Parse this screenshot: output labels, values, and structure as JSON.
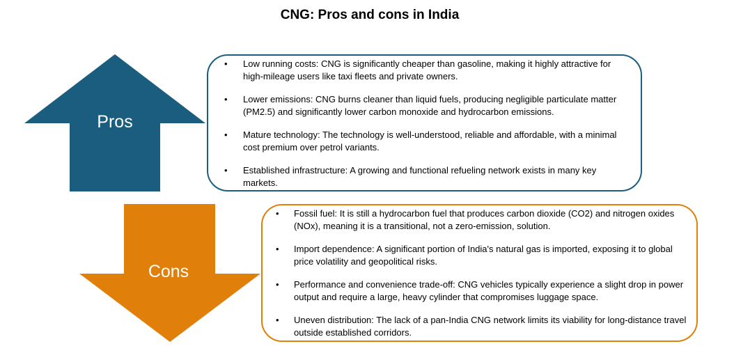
{
  "title": "CNG: Pros and cons in India",
  "colors": {
    "pros": "#1a5d7e",
    "cons": "#e0800a"
  },
  "pros": {
    "label": "Pros",
    "items": [
      "Low running costs: CNG is significantly cheaper than gasoline, making it highly attractive for high-mileage users like taxi fleets and private owners.",
      "Lower emissions: CNG burns cleaner than liquid fuels, producing negligible particulate matter (PM2.5) and significantly lower carbon monoxide and hydrocarbon emissions.",
      "Mature technology: The technology is well-understood, reliable and affordable, with a minimal cost premium over petrol variants.",
      "Established infrastructure: A growing and functional refueling network exists in many key markets."
    ]
  },
  "cons": {
    "label": "Cons",
    "items": [
      "Fossil fuel: It is still a hydrocarbon fuel that produces carbon dioxide (CO2) and nitrogen oxides (NOx), meaning it is a transitional, not a zero-emission, solution.",
      "Import dependence: A significant portion of India's natural gas is imported, exposing it to global price volatility and geopolitical risks.",
      "Performance and convenience trade-off: CNG vehicles typically experience a slight drop in power output and require a large, heavy cylinder that compromises luggage space.",
      "Uneven distribution: The lack of a pan-India CNG network limits its viability for long-distance travel outside established corridors."
    ]
  }
}
